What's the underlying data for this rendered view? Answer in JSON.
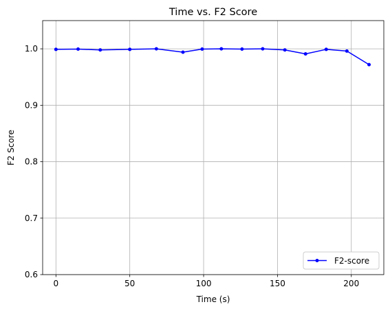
{
  "chart_data": {
    "type": "line",
    "title": "Time vs. F2 Score",
    "xlabel": "Time (s)",
    "ylabel": "F2 Score",
    "xlim": [
      -9,
      222
    ],
    "ylim": [
      0.6,
      1.05
    ],
    "xticks": [
      0,
      50,
      100,
      150,
      200
    ],
    "xtick_labels": [
      "0",
      "50",
      "100",
      "150",
      "200"
    ],
    "yticks": [
      0.6,
      0.7,
      0.8,
      0.9,
      1.0
    ],
    "ytick_labels": [
      "0.6",
      "0.7",
      "0.8",
      "0.9",
      "1.0"
    ],
    "grid": true,
    "legend_position": "lower-right",
    "series": [
      {
        "name": "F2-score",
        "color": "#0000ff",
        "marker": "circle",
        "x": [
          0,
          15,
          30,
          50,
          68,
          86,
          99,
          112,
          126,
          140,
          155,
          169,
          183,
          197,
          212
        ],
        "y": [
          0.999,
          0.9995,
          0.998,
          0.999,
          1.0,
          0.994,
          0.9995,
          1.0,
          0.9995,
          1.0,
          0.998,
          0.991,
          0.999,
          0.996,
          0.972
        ]
      }
    ]
  }
}
